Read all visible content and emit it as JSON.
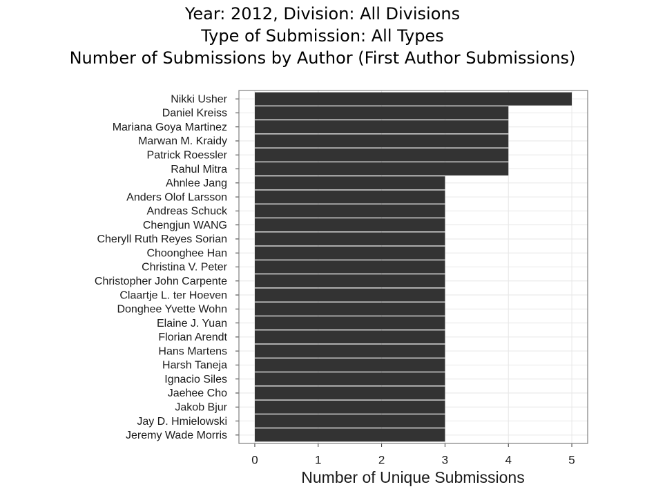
{
  "chart_data": {
    "type": "barh",
    "title": [
      "Year: 2012, Division: All Divisions",
      "Type of Submission: All Types",
      "Number of Submissions by Author (First Author Submissions)"
    ],
    "x_label": "Number of Unique Submissions",
    "categories": [
      "Nikki Usher",
      "Daniel Kreiss",
      "Mariana Goya Martinez",
      "Marwan M. Kraidy",
      "Patrick Roessler",
      "Rahul Mitra",
      "Ahnlee Jang",
      "Anders Olof Larsson",
      "Andreas Schuck",
      "Chengjun WANG",
      "Cheryll Ruth Reyes Sorian",
      "Choonghee Han",
      "Christina V. Peter",
      "Christopher John Carpente",
      "Claartje L. ter Hoeven",
      "Donghee Yvette Wohn",
      "Elaine J. Yuan",
      "Florian Arendt",
      "Hans Martens",
      "Harsh Taneja",
      "Ignacio Siles",
      "Jaehee Cho",
      "Jakob Bjur",
      "Jay D. Hmielowski",
      "Jeremy Wade Morris"
    ],
    "values": [
      5,
      4,
      4,
      4,
      4,
      4,
      3,
      3,
      3,
      3,
      3,
      3,
      3,
      3,
      3,
      3,
      3,
      3,
      3,
      3,
      3,
      3,
      3,
      3,
      3
    ],
    "color": "#333333",
    "xlim": [
      -0.25,
      5.25
    ],
    "xticks": [
      0,
      1,
      2,
      3,
      4,
      5
    ],
    "grid": true
  }
}
